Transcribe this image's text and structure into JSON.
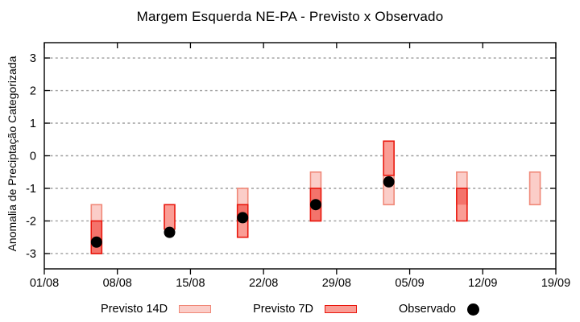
{
  "chart_data": {
    "type": "bar",
    "subtype": "range-bars-with-scatter",
    "title": "Margem Esquerda NE-PA - Previsto x Observado",
    "xlabel": "",
    "ylabel": "Anomalia de Preciptação Categorizada",
    "ylim": [
      -3.47,
      3.47
    ],
    "grid": "horizontal-dashed",
    "legend_position": "bottom",
    "ytick_values": [
      3,
      2,
      1,
      0,
      -1,
      -2,
      -3
    ],
    "ytick_labels": [
      "3",
      "2",
      "1",
      "0",
      "-1",
      "-2",
      "-3"
    ],
    "x_axis": {
      "span_days": 49,
      "tick_days": [
        0,
        7,
        14,
        21,
        28,
        35,
        42,
        49
      ],
      "tick_labels": [
        "01/08",
        "08/08",
        "15/08",
        "22/08",
        "29/08",
        "05/09",
        "12/09",
        "19/09"
      ]
    },
    "colors": {
      "previsto_14d_fill": "#fbcdc8",
      "previsto_14d_border": "#f08878",
      "previsto_7d_fill": "#fa9d95",
      "previsto_7d_border": "#e9170d",
      "overlap_fill": "#f4736b",
      "observado": "#000000",
      "grid": "#9e9e9e",
      "frame": "#000000"
    },
    "series": [
      {
        "name": "Previsto 14D",
        "type": "range-bar",
        "points": [
          {
            "date": "06/08",
            "day": 5,
            "from": -1.5,
            "to": -3.0
          },
          {
            "date": "20/08",
            "day": 19,
            "from": -1.0,
            "to": -2.0
          },
          {
            "date": "27/08",
            "day": 26,
            "from": -0.5,
            "to": -2.0
          },
          {
            "date": "03/09",
            "day": 33,
            "from": -0.6,
            "to": -1.5
          },
          {
            "date": "10/09",
            "day": 40,
            "from": -0.5,
            "to": -1.5
          },
          {
            "date": "17/09",
            "day": 47,
            "from": -0.5,
            "to": -1.5
          }
        ]
      },
      {
        "name": "Previsto 7D",
        "type": "range-bar",
        "points": [
          {
            "date": "06/08",
            "day": 5,
            "from": -2.0,
            "to": -3.0
          },
          {
            "date": "13/08",
            "day": 12,
            "from": -1.5,
            "to": -2.25
          },
          {
            "date": "20/08",
            "day": 19,
            "from": -1.5,
            "to": -2.5
          },
          {
            "date": "27/08",
            "day": 26,
            "from": -1.0,
            "to": -2.0
          },
          {
            "date": "03/09",
            "day": 33,
            "from": 0.45,
            "to": -0.6
          },
          {
            "date": "10/09",
            "day": 40,
            "from": -1.0,
            "to": -2.0
          }
        ]
      },
      {
        "name": "Observado",
        "type": "scatter",
        "points": [
          {
            "date": "06/08",
            "day": 5,
            "value": -2.65
          },
          {
            "date": "13/08",
            "day": 12,
            "value": -2.35
          },
          {
            "date": "20/08",
            "day": 19,
            "value": -1.9
          },
          {
            "date": "27/08",
            "day": 26,
            "value": -1.5
          },
          {
            "date": "03/09",
            "day": 33,
            "value": -0.8
          }
        ]
      }
    ],
    "legend": [
      {
        "label": "Previsto 14D",
        "swatch": "bar-light"
      },
      {
        "label": "Previsto 7D",
        "swatch": "bar-dark"
      },
      {
        "label": "Observado",
        "swatch": "dot"
      }
    ]
  }
}
